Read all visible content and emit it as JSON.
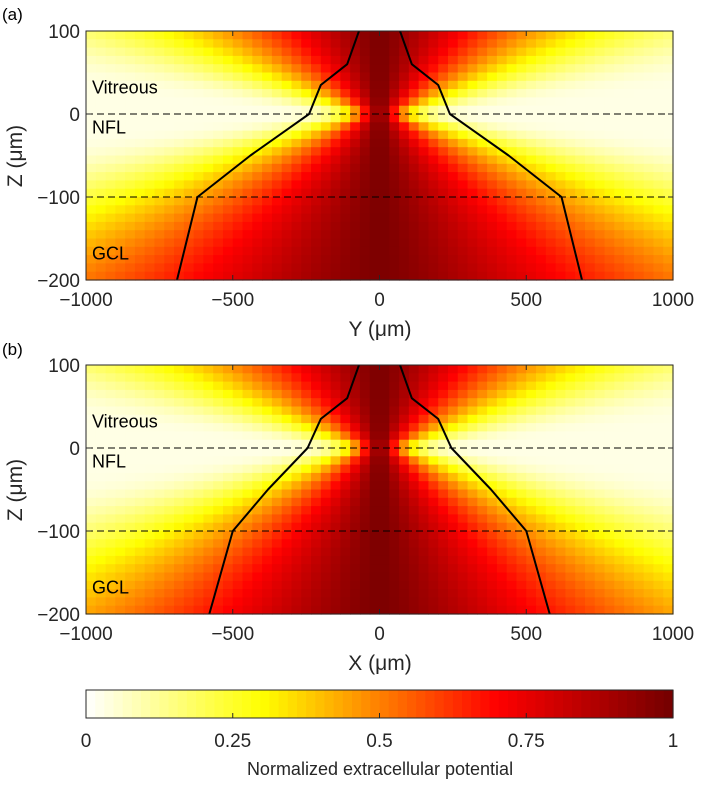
{
  "chart_data": [
    {
      "type": "heatmap",
      "panel_label": "(a)",
      "xlabel": "Y (μm)",
      "ylabel": "Z (μm)",
      "xlim": [
        -1000,
        1000
      ],
      "ylim": [
        -200,
        100
      ],
      "xticks": [
        -1000,
        -500,
        0,
        500,
        1000
      ],
      "yticks": [
        -200,
        -100,
        0,
        100
      ],
      "layer_boundaries": [
        0,
        -100
      ],
      "layers": [
        {
          "label": "Vitreous",
          "z": 32
        },
        {
          "label": "NFL",
          "z": -16
        },
        {
          "label": "GCL",
          "z": -168
        }
      ],
      "contour": {
        "value": 0.5,
        "points": [
          [
            70,
            100
          ],
          [
            110,
            60
          ],
          [
            200,
            35
          ],
          [
            240,
            0
          ],
          [
            440,
            -50
          ],
          [
            620,
            -100
          ],
          [
            690,
            -200
          ]
        ]
      },
      "field": {
        "core_width": 60,
        "width_per_depth": 5.1,
        "vitreous_width_per_depth": 2.2,
        "decay": 0.95
      }
    },
    {
      "type": "heatmap",
      "panel_label": "(b)",
      "xlabel": "X (μm)",
      "ylabel": "Z (μm)",
      "xlim": [
        -1000,
        1000
      ],
      "ylim": [
        -200,
        100
      ],
      "xticks": [
        -1000,
        -500,
        0,
        500,
        1000
      ],
      "yticks": [
        -200,
        -100,
        0,
        100
      ],
      "layer_boundaries": [
        0,
        -100
      ],
      "layers": [
        {
          "label": "Vitreous",
          "z": 32
        },
        {
          "label": "NFL",
          "z": -16
        },
        {
          "label": "GCL",
          "z": -168
        }
      ],
      "contour": {
        "value": 0.5,
        "points": [
          [
            70,
            100
          ],
          [
            110,
            60
          ],
          [
            200,
            35
          ],
          [
            245,
            0
          ],
          [
            380,
            -50
          ],
          [
            500,
            -100
          ],
          [
            580,
            -200
          ]
        ]
      },
      "field": {
        "core_width": 60,
        "width_per_depth": 4.3,
        "vitreous_width_per_depth": 2.2,
        "decay": 0.95
      }
    }
  ],
  "colorbar": {
    "colormap": "hot",
    "label": "Normalized extracellular potential",
    "ticks": [
      0,
      0.25,
      0.5,
      0.75,
      1
    ]
  }
}
